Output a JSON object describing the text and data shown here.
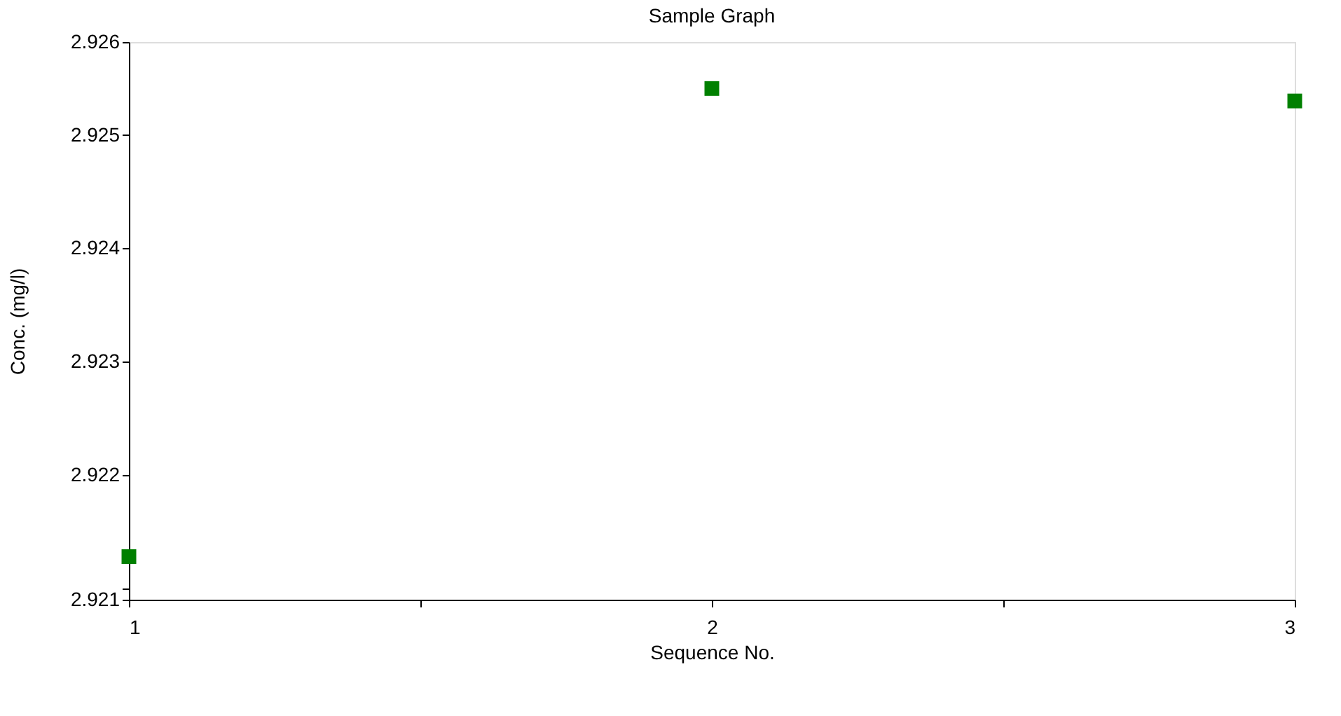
{
  "chart_data": {
    "type": "scatter",
    "title": "Sample Graph",
    "xlabel": "Sequence No.",
    "ylabel": "Conc. (mg/l)",
    "x": [
      1,
      2,
      3
    ],
    "series": [
      {
        "color": "#008000",
        "values": [
          2.92128,
          2.92541,
          2.9253
        ]
      }
    ],
    "xlim": [
      1,
      3
    ],
    "xticks": [
      1,
      {
        "value": 1.5,
        "label": null
      },
      2,
      {
        "value": 2.5,
        "label": null
      },
      3
    ],
    "ylim": [
      2.9209,
      2.92582
    ],
    "yticks": [
      {
        "value": 2.9209,
        "label": "2.921"
      },
      {
        "value": 2.921,
        "label": null
      },
      2.922,
      2.923,
      2.924,
      2.925,
      {
        "value": 2.92582,
        "label": "2.926"
      }
    ],
    "grid": false,
    "legend": false,
    "marker": "square"
  }
}
